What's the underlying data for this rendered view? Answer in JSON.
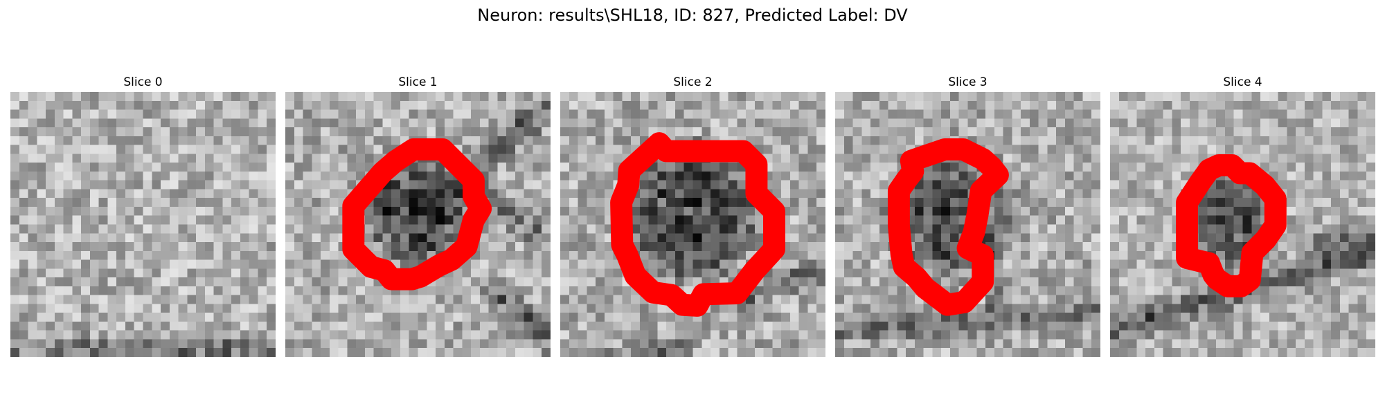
{
  "figure": {
    "title": "Neuron: results\\SHL18, ID: 827, Predicted Label: DV"
  },
  "panels": [
    {
      "title": "Slice 0",
      "texture": "light mottled gray noise, faint darker band along bottom",
      "has_contour": false
    },
    {
      "title": "Slice 1",
      "texture": "dark rounded cell body at center with dark process to upper right",
      "has_contour": true
    },
    {
      "title": "Slice 2",
      "texture": "large dark rounded cell body at center with dark process to lower right",
      "has_contour": true
    },
    {
      "title": "Slice 3",
      "texture": "dark rounded cell body center-left, dark band near bottom",
      "has_contour": true
    },
    {
      "title": "Slice 4",
      "texture": "small dark body at center, dark diagonal band across lower half",
      "has_contour": true
    }
  ],
  "colors": {
    "contour": "#ff0000",
    "background": "#ffffff"
  }
}
